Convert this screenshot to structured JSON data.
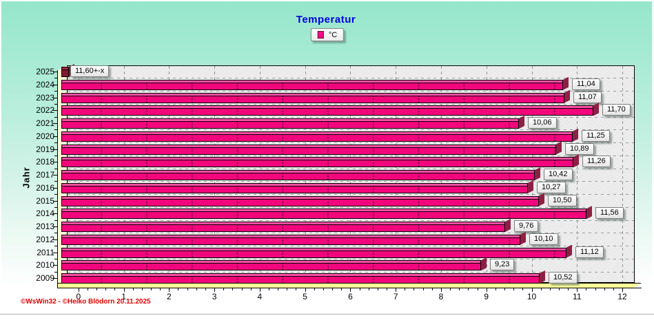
{
  "title": "Temperatur",
  "legend": {
    "label": "°C"
  },
  "y_axis_label": "Jahr",
  "x_axis": {
    "min": 0,
    "max": 12,
    "tick_labels": [
      "0",
      "1",
      "2",
      "3",
      "4",
      "5",
      "6",
      "7",
      "8",
      "9",
      "10",
      "11",
      "12"
    ],
    "minor_ticks_per_unit": 5
  },
  "footer": {
    "copyright": "©WsWin32 - ©Heiko Blödorn  20.11.2025"
  },
  "colors": {
    "title": "#0000E0",
    "bar_fill": "#F2067C",
    "bar_top": "#FF4FA5",
    "bar_side": "#8E2044",
    "stub_fill": "#7E1B33",
    "stub_top": "#9E2C4C",
    "plot_bg": "#EDEDED",
    "wall": "#FFFFD6",
    "floor": "#FFFF99",
    "legend_marker": "#F20D8C",
    "copyright": "#E00000",
    "bg_top": "#94E6CA",
    "bg_bottom": "#FFFFFF"
  },
  "chart_data": {
    "type": "bar",
    "orientation": "horizontal",
    "title": "Temperatur",
    "ylabel": "Jahr",
    "xlabel": "",
    "legend_entries": [
      "°C"
    ],
    "xlim": [
      0,
      12
    ],
    "grid": true,
    "legend_position": "top-center",
    "categories": [
      "2025",
      "2024",
      "2023",
      "2022",
      "2021",
      "2020",
      "2019",
      "2018",
      "2017",
      "2016",
      "2015",
      "2014",
      "2013",
      "2012",
      "2011",
      "2010",
      "2009"
    ],
    "values": [
      11.6,
      11.04,
      11.07,
      11.7,
      10.06,
      11.25,
      10.89,
      11.26,
      10.42,
      10.27,
      10.5,
      11.56,
      9.76,
      10.1,
      11.12,
      9.23,
      10.52
    ],
    "value_labels": [
      "11,60+-x",
      "11,04",
      "11,07",
      "11,70",
      "10,06",
      "11,25",
      "10,89",
      "11,26",
      "10,42",
      "10,27",
      "10,50",
      "11,56",
      "9,76",
      "10,10",
      "11,12",
      "9,23",
      "10,52"
    ],
    "stub_bars": [
      0
    ]
  }
}
